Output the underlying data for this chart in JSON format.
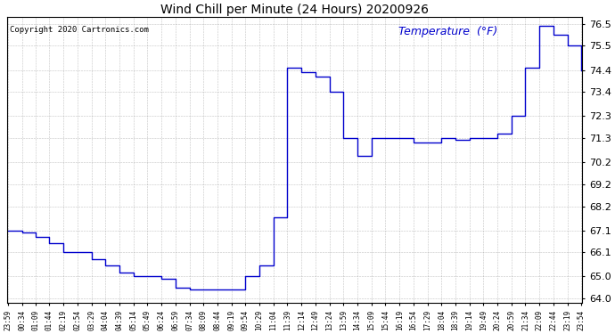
{
  "title": "Wind Chill per Minute (24 Hours) 20200926",
  "copyright": "Copyright 2020 Cartronics.com",
  "legend_label": "Temperature  (°F)",
  "line_color": "#0000CC",
  "background_color": "#ffffff",
  "grid_color": "#999999",
  "ylim": [
    63.8,
    76.8
  ],
  "yticks": [
    64.0,
    65.0,
    66.1,
    67.1,
    68.2,
    69.2,
    70.2,
    71.3,
    72.3,
    73.4,
    74.4,
    75.5,
    76.5
  ],
  "xtick_labels": [
    "23:59",
    "00:34",
    "01:09",
    "01:44",
    "02:19",
    "02:54",
    "03:29",
    "04:04",
    "04:39",
    "05:14",
    "05:49",
    "06:24",
    "06:59",
    "07:34",
    "08:09",
    "08:44",
    "09:19",
    "09:54",
    "10:29",
    "11:04",
    "11:39",
    "12:14",
    "12:49",
    "13:24",
    "13:59",
    "14:34",
    "15:09",
    "15:44",
    "16:19",
    "16:54",
    "17:29",
    "18:04",
    "18:39",
    "19:14",
    "19:49",
    "20:24",
    "20:59",
    "21:34",
    "22:09",
    "22:44",
    "23:19",
    "23:54"
  ],
  "x_values": [
    0,
    35,
    69,
    104,
    139,
    174,
    209,
    244,
    279,
    314,
    349,
    384,
    419,
    454,
    489,
    524,
    559,
    594,
    629,
    664,
    699,
    734,
    769,
    804,
    839,
    874,
    909,
    944,
    979,
    1014,
    1049,
    1084,
    1119,
    1154,
    1189,
    1224,
    1259,
    1294,
    1329,
    1364,
    1399,
    1434
  ],
  "y_shape": [
    67.1,
    67.0,
    66.8,
    66.5,
    66.1,
    66.1,
    65.8,
    65.5,
    65.2,
    65.0,
    65.0,
    64.9,
    64.5,
    64.4,
    64.4,
    64.4,
    64.4,
    65.0,
    65.5,
    67.7,
    74.5,
    74.3,
    74.1,
    73.4,
    71.3,
    70.5,
    71.3,
    71.3,
    71.3,
    71.1,
    71.1,
    71.3,
    71.2,
    71.3,
    71.3,
    71.5,
    72.3,
    74.5,
    76.4,
    76.0,
    75.5,
    74.4
  ],
  "figwidth": 6.9,
  "figheight": 3.75,
  "dpi": 100
}
